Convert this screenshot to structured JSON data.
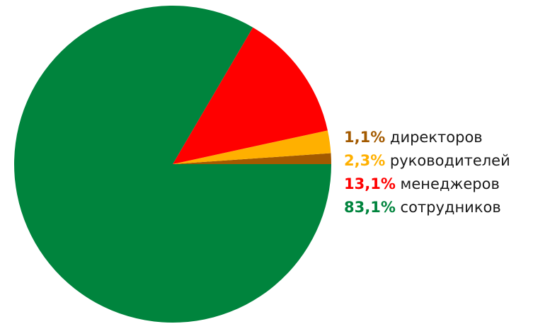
{
  "chart_data": {
    "type": "pie",
    "title": "",
    "slices": [
      {
        "label": "директоров",
        "value": 1.1,
        "display": "1,1%",
        "color": "#a35a00"
      },
      {
        "label": "руководителей",
        "value": 2.3,
        "display": "2,3%",
        "color": "#ffb000"
      },
      {
        "label": "менеджеров",
        "value": 13.1,
        "display": "13,1%",
        "color": "#ff0000"
      },
      {
        "label": "сотрудников",
        "value": 83.1,
        "display": "83,1%",
        "color": "#00843d"
      }
    ],
    "legend_position": "right"
  }
}
